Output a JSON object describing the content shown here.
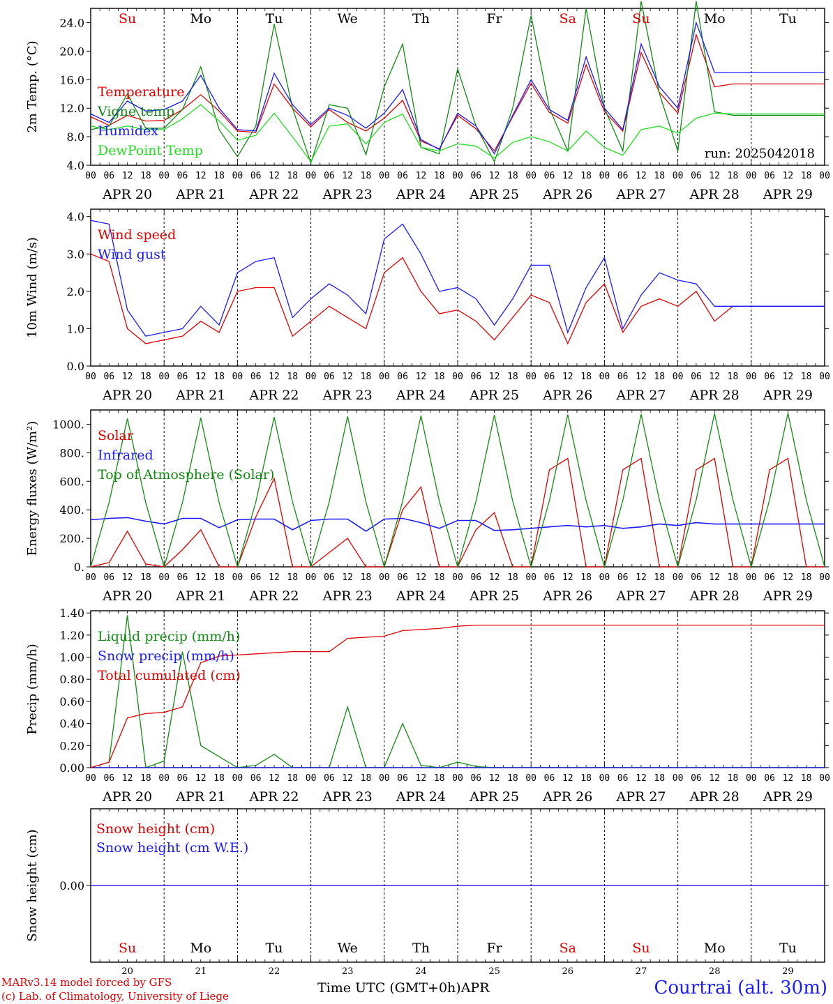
{
  "run_label": "run: 2025042018",
  "weekdays": [
    "Su",
    "Mo",
    "Tu",
    "We",
    "Th",
    "Fr",
    "Sa",
    "Su",
    "Mo",
    "Tu"
  ],
  "weekday_colors": [
    "#e00000",
    "#000000",
    "#000000",
    "#000000",
    "#000000",
    "#000000",
    "#e00000",
    "#e00000",
    "#000000",
    "#000000"
  ],
  "date_labels": [
    "APR 20",
    "APR 21",
    "APR 22",
    "APR 23",
    "APR 24",
    "APR 25",
    "APR 26",
    "APR 27",
    "APR 28",
    "APR 29"
  ],
  "day_numbers": [
    "20",
    "21",
    "22",
    "23",
    "24",
    "25",
    "26",
    "27",
    "28",
    "29"
  ],
  "hour_ticks": [
    "00",
    "06",
    "12",
    "18"
  ],
  "last_hour_tick": "00",
  "footer": {
    "credit_line1": "MARv3.14 model forced by GFS",
    "credit_line2": "(c) Lab. of Climatology, University of Liege",
    "axis_title": "Time UTC (GMT+0h)",
    "month": "APR",
    "station": "Courtrai (alt. 30m)"
  },
  "colors": {
    "red": "#e00000",
    "blue": "#1a1aff",
    "green": "#138a13",
    "lightgreen": "#22dd22"
  },
  "chart_data": [
    {
      "type": "line",
      "ylabel": "2m Temp. (°C)",
      "ylim": [
        4.0,
        26.0
      ],
      "yticks": [
        "4.0",
        "8.0",
        "12.0",
        "16.0",
        "20.0",
        "24.0"
      ],
      "ytick_values": [
        4,
        8,
        12,
        16,
        20,
        24
      ],
      "x_hours": [
        0,
        6,
        12,
        18,
        24,
        30,
        36,
        42,
        48,
        54,
        60,
        66,
        72,
        78,
        84,
        90,
        96,
        102,
        108,
        114,
        120,
        126,
        132,
        138,
        144,
        150,
        156,
        162,
        168,
        174,
        180,
        186,
        192,
        198,
        204,
        210,
        216,
        222,
        228,
        234,
        240
      ],
      "legend": [
        "Temperature",
        "Vigne temp",
        "Humidex",
        "DewPoint Temp"
      ],
      "series": [
        {
          "name": "Temperature",
          "color": "#e00000",
          "values": [
            10.8,
            9.6,
            11.0,
            10.2,
            10.3,
            11.8,
            13.9,
            11.6,
            8.8,
            8.6,
            15.4,
            12.0,
            9.4,
            11.8,
            10.0,
            8.8,
            10.6,
            13.1,
            7.4,
            6.3,
            11.0,
            9.1,
            6.0,
            10.8,
            15.5,
            11.4,
            9.9,
            18.1,
            11.5,
            8.8,
            19.8,
            14.2,
            11.3,
            22.3,
            15.0,
            15.4,
            15.4,
            15.4,
            15.4,
            15.4,
            15.4
          ]
        },
        {
          "name": "Vigne temp",
          "color": "#138a13",
          "values": [
            9.0,
            9.5,
            14.0,
            9.2,
            9.2,
            11.8,
            17.8,
            9.0,
            5.2,
            9.5,
            23.8,
            12.0,
            4.3,
            12.5,
            12.0,
            5.5,
            15.0,
            21.0,
            6.5,
            5.6,
            17.5,
            9.5,
            4.5,
            12.0,
            25.0,
            12.0,
            6.0,
            26.0,
            12.0,
            6.0,
            27.0,
            14.0,
            6.0,
            27.0,
            11.5,
            11.0,
            11.0,
            11.0,
            11.0,
            11.0,
            11.0
          ]
        },
        {
          "name": "Humidex",
          "color": "#1a1aff",
          "values": [
            11.2,
            10.0,
            13.0,
            11.6,
            11.8,
            13.0,
            16.6,
            12.0,
            9.0,
            8.8,
            16.9,
            12.5,
            9.7,
            12.0,
            11.0,
            9.2,
            11.3,
            14.6,
            7.6,
            6.2,
            11.3,
            9.5,
            5.6,
            11.0,
            16.0,
            11.8,
            10.3,
            19.2,
            12.0,
            9.0,
            21.0,
            15.0,
            12.0,
            24.0,
            17.0,
            17.0,
            17.0,
            17.0,
            17.0,
            17.0,
            17.0
          ]
        },
        {
          "name": "DewPoint Temp",
          "color": "#22dd22",
          "values": [
            9.5,
            9.0,
            9.5,
            9.0,
            9.0,
            10.5,
            12.5,
            10.2,
            7.5,
            8.2,
            11.3,
            8.0,
            4.5,
            9.5,
            9.8,
            7.0,
            10.0,
            11.2,
            6.5,
            6.0,
            7.0,
            6.7,
            5.0,
            7.2,
            8.0,
            7.3,
            6.0,
            8.8,
            6.5,
            5.4,
            9.0,
            9.5,
            8.5,
            10.6,
            11.3,
            11.2,
            11.2,
            11.2,
            11.2,
            11.2,
            11.2
          ]
        }
      ]
    },
    {
      "type": "line",
      "ylabel": "10m Wind (m/s)",
      "ylim": [
        0.0,
        4.2
      ],
      "yticks": [
        "0.0",
        "1.0",
        "2.0",
        "3.0",
        "4.0"
      ],
      "ytick_values": [
        0,
        1,
        2,
        3,
        4
      ],
      "x_hours": [
        0,
        6,
        12,
        18,
        24,
        30,
        36,
        42,
        48,
        54,
        60,
        66,
        72,
        78,
        84,
        90,
        96,
        102,
        108,
        114,
        120,
        126,
        132,
        138,
        144,
        150,
        156,
        162,
        168,
        174,
        180,
        186,
        192,
        198,
        204,
        210,
        216,
        222,
        228,
        234,
        240
      ],
      "legend": [
        "Wind speed",
        "Wind gust"
      ],
      "series": [
        {
          "name": "Wind speed",
          "color": "#e00000",
          "values": [
            3.0,
            2.8,
            1.0,
            0.6,
            0.7,
            0.8,
            1.2,
            0.9,
            2.0,
            2.1,
            2.1,
            0.8,
            1.2,
            1.6,
            1.3,
            1.0,
            2.5,
            2.9,
            2.0,
            1.4,
            1.5,
            1.2,
            0.7,
            1.3,
            1.9,
            1.7,
            0.6,
            1.7,
            2.2,
            0.9,
            1.6,
            1.8,
            1.6,
            2.0,
            1.2,
            1.6,
            1.6,
            1.6,
            1.6,
            1.6,
            1.6
          ]
        },
        {
          "name": "Wind gust",
          "color": "#1a1aff",
          "values": [
            3.9,
            3.8,
            1.5,
            0.8,
            0.9,
            1.0,
            1.6,
            1.1,
            2.5,
            2.8,
            2.9,
            1.3,
            1.8,
            2.2,
            1.9,
            1.4,
            3.4,
            3.8,
            3.0,
            2.0,
            2.1,
            1.8,
            1.1,
            1.8,
            2.7,
            2.7,
            0.9,
            2.1,
            2.9,
            1.0,
            1.9,
            2.5,
            2.3,
            2.2,
            1.6,
            1.6,
            1.6,
            1.6,
            1.6,
            1.6,
            1.6
          ]
        }
      ]
    },
    {
      "type": "line",
      "ylabel": "Energy fluxes (W/m²)",
      "ylim": [
        0,
        1100
      ],
      "yticks": [
        "0.",
        "200.",
        "400.",
        "600.",
        "800.",
        "1000."
      ],
      "ytick_values": [
        0,
        200,
        400,
        600,
        800,
        1000
      ],
      "x_hours": [
        0,
        6,
        12,
        18,
        24,
        30,
        36,
        42,
        48,
        54,
        60,
        66,
        72,
        78,
        84,
        90,
        96,
        102,
        108,
        114,
        120,
        126,
        132,
        138,
        144,
        150,
        156,
        162,
        168,
        174,
        180,
        186,
        192,
        198,
        204,
        210,
        216,
        222,
        228,
        234,
        240
      ],
      "legend": [
        "Solar",
        "Infrared",
        "Top of Atmosphere (Solar)"
      ],
      "series": [
        {
          "name": "Solar",
          "color": "#e00000",
          "values": [
            0,
            30,
            250,
            20,
            0,
            120,
            260,
            0,
            0,
            350,
            620,
            0,
            0,
            100,
            200,
            0,
            0,
            400,
            560,
            0,
            0,
            260,
            380,
            0,
            0,
            680,
            760,
            0,
            0,
            680,
            760,
            0,
            0,
            680,
            760,
            0,
            0,
            680,
            760,
            0,
            0
          ]
        },
        {
          "name": "Infrared",
          "color": "#1a1aff",
          "values": [
            330,
            340,
            345,
            320,
            300,
            340,
            340,
            275,
            330,
            335,
            335,
            260,
            325,
            335,
            335,
            250,
            335,
            340,
            310,
            270,
            325,
            325,
            255,
            260,
            270,
            280,
            290,
            280,
            290,
            270,
            280,
            300,
            290,
            310,
            300,
            300,
            300,
            300,
            300,
            300,
            300
          ]
        },
        {
          "name": "Top of Atmosphere (Solar)",
          "color": "#138a13",
          "values": [
            0,
            450,
            1040,
            450,
            0,
            450,
            1045,
            450,
            0,
            455,
            1050,
            455,
            0,
            455,
            1055,
            455,
            0,
            460,
            1060,
            460,
            0,
            460,
            1065,
            460,
            0,
            465,
            1068,
            465,
            0,
            465,
            1070,
            465,
            0,
            470,
            1075,
            470,
            0,
            470,
            1078,
            470,
            0
          ]
        }
      ]
    },
    {
      "type": "line",
      "ylabel": "Precip (mm/h)",
      "ylim": [
        0.0,
        1.42
      ],
      "yticks": [
        "0.00",
        "0.20",
        "0.40",
        "0.60",
        "0.80",
        "1.00",
        "1.20",
        "1.40"
      ],
      "ytick_values": [
        0,
        0.2,
        0.4,
        0.6,
        0.8,
        1.0,
        1.2,
        1.4
      ],
      "x_hours": [
        0,
        6,
        12,
        18,
        24,
        30,
        36,
        42,
        48,
        54,
        60,
        66,
        72,
        78,
        84,
        90,
        96,
        102,
        108,
        114,
        120,
        126,
        132,
        138,
        144,
        150,
        156,
        162,
        168,
        174,
        180,
        186,
        192,
        198,
        204,
        210,
        216,
        222,
        228,
        234,
        240
      ],
      "legend": [
        "Liquid precip (mm/h)",
        "Snow precip (mm/h)",
        "Total cumulated (cm)"
      ],
      "series": [
        {
          "name": "Liquid precip (mm/h)",
          "color": "#138a13",
          "values": [
            0,
            0.05,
            1.38,
            0,
            0.06,
            1.05,
            0.2,
            0.1,
            0,
            0.02,
            0.12,
            0,
            0,
            0,
            0.55,
            0,
            0,
            0.4,
            0.02,
            0,
            0.05,
            0.01,
            0,
            0,
            0,
            0,
            0,
            0,
            0,
            0,
            0,
            0,
            0,
            0,
            0,
            0,
            0,
            0,
            0,
            0,
            0
          ]
        },
        {
          "name": "Snow precip (mm/h)",
          "color": "#1a1aff",
          "values": [
            0,
            0,
            0,
            0,
            0,
            0,
            0,
            0,
            0,
            0,
            0,
            0,
            0,
            0,
            0,
            0,
            0,
            0,
            0,
            0,
            0,
            0,
            0,
            0,
            0,
            0,
            0,
            0,
            0,
            0,
            0,
            0,
            0,
            0,
            0,
            0,
            0,
            0,
            0,
            0,
            0
          ]
        },
        {
          "name": "Total cumulated (cm)",
          "color": "#e00000",
          "values": [
            0,
            0.05,
            0.45,
            0.49,
            0.5,
            0.55,
            0.95,
            1.01,
            1.02,
            1.03,
            1.04,
            1.05,
            1.05,
            1.05,
            1.17,
            1.18,
            1.19,
            1.24,
            1.25,
            1.26,
            1.28,
            1.29,
            1.29,
            1.29,
            1.29,
            1.29,
            1.29,
            1.29,
            1.29,
            1.29,
            1.29,
            1.29,
            1.29,
            1.29,
            1.29,
            1.29,
            1.29,
            1.29,
            1.29,
            1.29,
            1.29
          ]
        }
      ]
    },
    {
      "type": "line",
      "ylabel": "Snow height (cm)",
      "ylim": [
        -1.0,
        1.0
      ],
      "yticks": [
        "0.00"
      ],
      "ytick_values": [
        0
      ],
      "x_hours": [
        0,
        240
      ],
      "legend": [
        "Snow height (cm)",
        "Snow height (cm W.E.)"
      ],
      "series": [
        {
          "name": "Snow height (cm)",
          "color": "#e00000",
          "values": [
            0,
            0
          ]
        },
        {
          "name": "Snow height (cm W.E.)",
          "color": "#1a1aff",
          "values": [
            0,
            0
          ]
        }
      ]
    }
  ]
}
